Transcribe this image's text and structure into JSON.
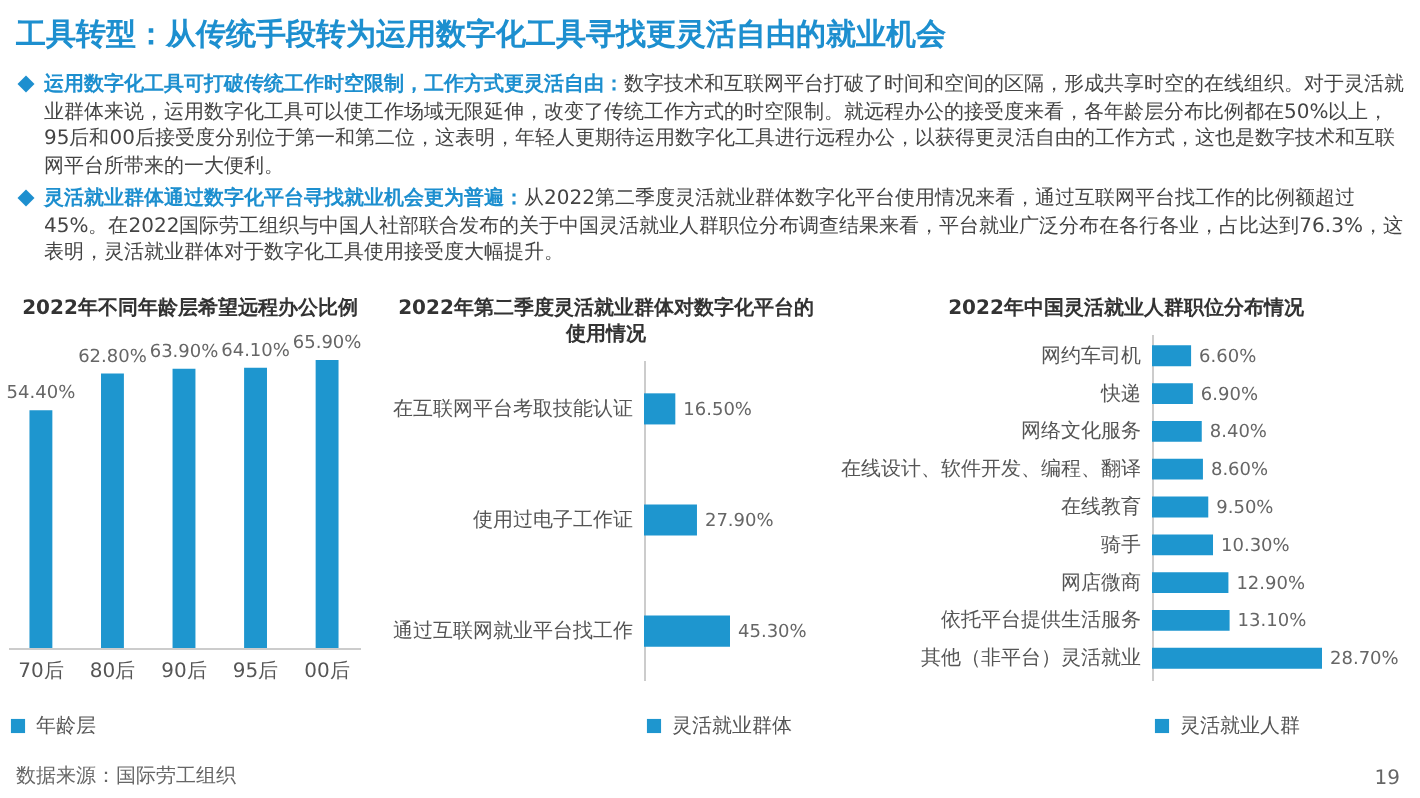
{
  "chart_data": [
    {
      "type": "other",
      "title": "工具转型：从传统手段转为运用数字化工具寻找更灵活自由的就业机会",
      "annotations": [
        "运用数字化工具可打破传统工作时空限制，工作方式更灵活自由：",
        "数字技术和互联网平台打破了时间和空间的区隔，形成共享时空的在线组织。对于灵活就业群体来说，运用数字化工具可以使工作场域无限延伸，改变了传统工作方式的时空限制。就远程办公的接受度来看，各年龄层分布比例都在50%以上，95后和00后接受度分别位于第一和第二位，这表明，年轻人更期待运用数字化工具进行远程办公，以获得更灵活自由的工作方式，这也是数字技术和互联网平台所带来的一大便利。",
        "灵活就业群体通过数字化平台寻找就业机会更为普遍：",
        "从2022第二季度灵活就业群体数字化平台使用情况来看，通过互联网平台找工作的比例额超过45%。在2022国际劳工组织与中国人社部联合发布的关于中国灵活就业人群职位分布调查结果来看，平台就业广泛分布在各行各业，占比达到76.3%，这表明，灵活就业群体对于数字化工具使用接受度大幅提升。",
        "数据来源：国际劳工组织",
        "19"
      ]
    },
    {
      "type": "bar",
      "title": "2022年不同年龄层希望远程办公比例",
      "categories": [
        "70后",
        "80后",
        "90后",
        "95后",
        "00后"
      ],
      "legend": "bottom",
      "series": [
        {
          "name": "年龄层",
          "color": "#1e96cf",
          "values": [
            54.4,
            62.8,
            63.9,
            64.1,
            65.9
          ],
          "value_labels": [
            "54.40%",
            "62.80%",
            "63.90%",
            "64.10%",
            "65.90%"
          ]
        }
      ]
    },
    {
      "type": "bar",
      "orientation": "horizontal",
      "title": "2022年第二季度灵活就业群体对数字化平台的使用情况",
      "categories": [
        "在互联网平台考取技能认证",
        "使用过电子工作证",
        "通过互联网就业平台找工作"
      ],
      "legend": "bottom",
      "series": [
        {
          "name": "灵活就业群体",
          "color": "#1e96cf",
          "values": [
            16.5,
            27.9,
            45.3
          ],
          "value_labels": [
            "16.50%",
            "27.90%",
            "45.30%"
          ]
        }
      ]
    },
    {
      "type": "bar",
      "orientation": "horizontal",
      "title": "2022年中国灵活就业人群职位分布情况",
      "categories": [
        "网约车司机",
        "快递",
        "网络文化服务",
        "在线设计、软件开发、编程、翻译",
        "在线教育",
        "骑手",
        "网店微商",
        "依托平台提供生活服务",
        "其他（非平台）灵活就业"
      ],
      "legend": "bottom",
      "series": [
        {
          "name": "灵活就业人群",
          "color": "#1e96cf",
          "values": [
            6.6,
            6.9,
            8.4,
            8.6,
            9.5,
            10.3,
            12.9,
            13.1,
            28.7
          ],
          "value_labels": [
            "6.60%",
            "6.90%",
            "8.40%",
            "8.60%",
            "9.50%",
            "10.30%",
            "12.90%",
            "13.10%",
            "28.70%"
          ]
        }
      ]
    }
  ]
}
